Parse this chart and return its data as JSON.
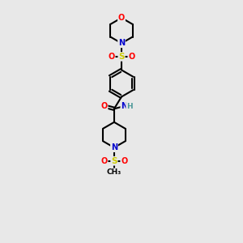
{
  "background_color": "#e8e8e8",
  "line_color": "#000000",
  "bond_width": 1.5,
  "atom_colors": {
    "O": "#ff0000",
    "N": "#0000cc",
    "S": "#cccc00",
    "H": "#4d9999",
    "C": "#000000"
  },
  "figsize": [
    3.0,
    3.0
  ],
  "dpi": 100
}
